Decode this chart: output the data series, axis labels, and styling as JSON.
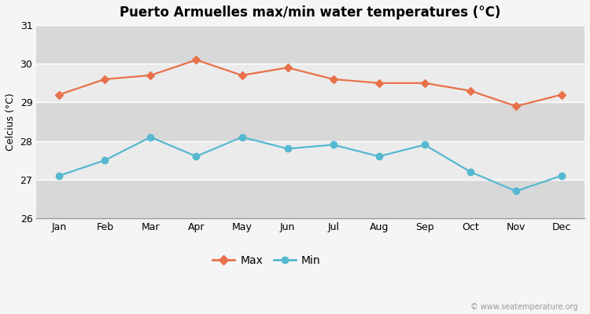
{
  "title": "Puerto Armuelles max/min water temperatures (°C)",
  "ylabel": "Celcius (°C)",
  "months": [
    "Jan",
    "Feb",
    "Mar",
    "Apr",
    "May",
    "Jun",
    "Jul",
    "Aug",
    "Sep",
    "Oct",
    "Nov",
    "Dec"
  ],
  "max_temps": [
    29.2,
    29.6,
    29.7,
    30.1,
    29.7,
    29.9,
    29.6,
    29.5,
    29.5,
    29.3,
    28.9,
    29.2
  ],
  "min_temps": [
    27.1,
    27.5,
    28.1,
    27.6,
    28.1,
    27.8,
    27.9,
    27.6,
    27.9,
    27.2,
    26.7,
    27.1
  ],
  "max_color": "#e8714a",
  "min_color": "#55b8d0",
  "ylim_min": 26,
  "ylim_max": 31,
  "yticks": [
    26,
    27,
    28,
    29,
    30,
    31
  ],
  "fig_bg_color": "#f5f5f5",
  "band_light": "#ebebeb",
  "band_dark": "#d8d8d8",
  "grid_color": "#ffffff",
  "watermark": "© www.seatemperature.org",
  "legend_max": "Max",
  "legend_min": "Min",
  "title_fontsize": 12,
  "axis_fontsize": 9,
  "tick_fontsize": 9
}
